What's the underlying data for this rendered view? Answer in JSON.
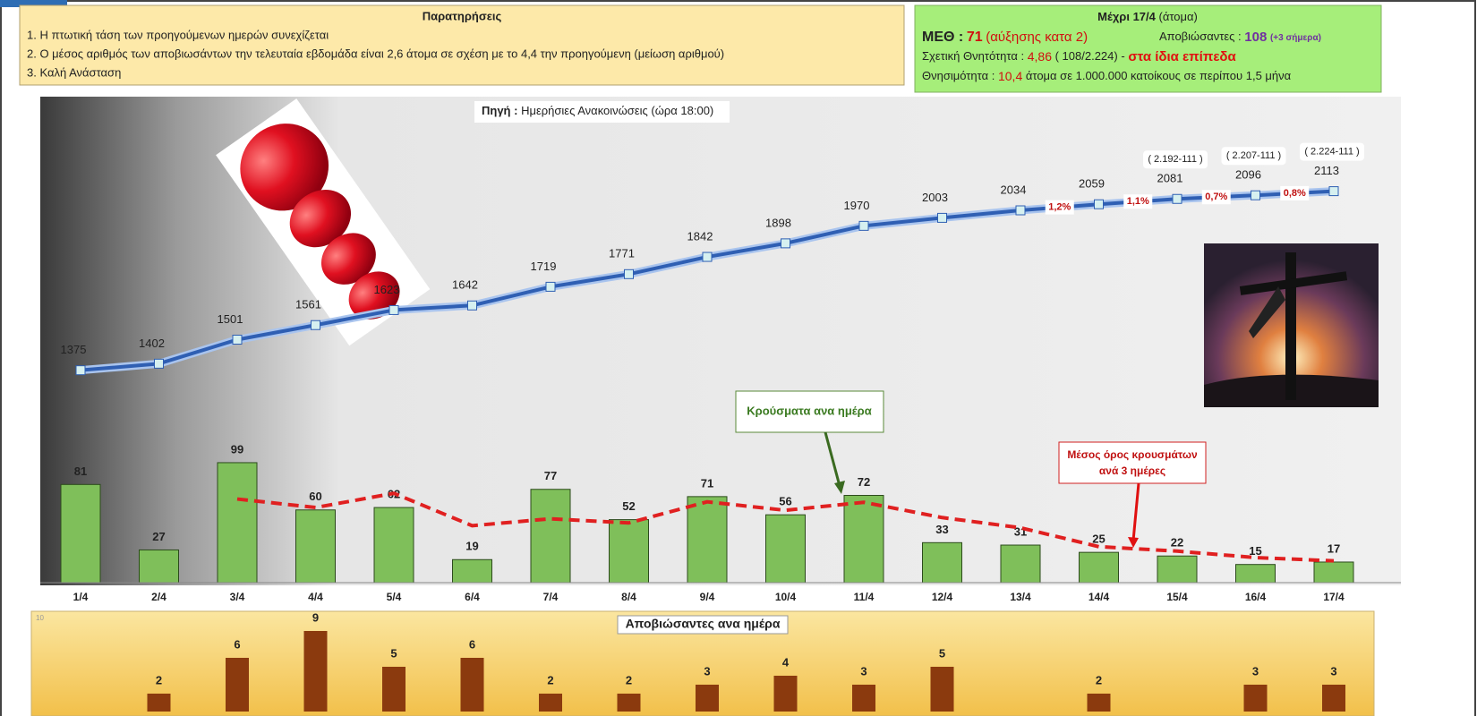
{
  "notes": {
    "title": "Παρατηρήσεις",
    "items": [
      "1. Η πτωτική τάση των προηγούμενων ημερών συνεχίζεται",
      "2. Ο μέσος αριθμός των αποβιωσάντων την τελευταία εβδομάδα είναι 2,6 άτομα σε σχέση με το 4,4 την προηγούμενη (μείωση αριθμού)",
      "3. Καλή Ανάσταση"
    ]
  },
  "summary": {
    "title": "Μέχρι 17/4",
    "title_unit": "(άτομα)",
    "icu_label": "ΜΕΘ :",
    "icu_value": 71,
    "icu_note": "(αύξησης κατα 2)",
    "deaths_label": "Αποβιώσαντες :",
    "deaths_value": 108,
    "deaths_note": "(+3 σήμερα)",
    "cfr_label": "Σχετική Θνητότητα :",
    "cfr_value": "4,86",
    "cfr_note": "( 108/2.224)",
    "cfr_dash": "-",
    "cfr_trend": "στα ίδια επίπεδα",
    "mortality_label": "Θνησιμότητα :",
    "mortality_value": "10,4",
    "mortality_note": "άτομα σε 1.000.000 κατοίκους σε περίπου 1,5 μήνα"
  },
  "chart_data": [
    {
      "type": "line",
      "source_label": "Πηγή :",
      "source": "Ημερήσιες Ανακοινώσεις (ώρα 18:00)",
      "values": [
        1375,
        1402,
        1501,
        1561,
        1623,
        1642,
        1719,
        1771,
        1842,
        1898,
        1970,
        2003,
        2034,
        2059,
        2081,
        2096,
        2113
      ],
      "growth_labels": [
        null,
        null,
        null,
        null,
        null,
        null,
        null,
        null,
        null,
        null,
        null,
        null,
        null,
        "1,2%",
        "1,1%",
        "0,7%",
        "0,8%"
      ],
      "note_labels": [
        null,
        null,
        null,
        null,
        null,
        null,
        null,
        null,
        null,
        null,
        null,
        null,
        null,
        null,
        "( 2.192-111 )",
        "( 2.207-111 )",
        "( 2.224-111 )"
      ],
      "color": "#2f5fb3",
      "ylim": [
        1300,
        2200
      ]
    },
    {
      "type": "bar",
      "categories": [
        "1/4",
        "2/4",
        "3/4",
        "4/4",
        "5/4",
        "6/4",
        "7/4",
        "8/4",
        "9/4",
        "10/4",
        "11/4",
        "12/4",
        "13/4",
        "14/4",
        "15/4",
        "16/4",
        "17/4"
      ],
      "series": [
        {
          "name": "Κρούσματα ανα ημέρα",
          "type": "bar",
          "color": "#7fbf5a",
          "values": [
            81,
            27,
            99,
            60,
            62,
            19,
            77,
            52,
            71,
            56,
            72,
            33,
            31,
            25,
            22,
            15,
            17
          ]
        },
        {
          "name": "Μέσος όρος κρουσμάτων ανά 3 ημέρες",
          "type": "line",
          "color": "#e02020",
          "values": [
            null,
            null,
            69,
            62,
            73.7,
            47,
            52.7,
            49.3,
            66.7,
            59.7,
            66.3,
            53.7,
            45.3,
            29.7,
            26,
            20.7,
            18
          ]
        }
      ],
      "ylim": [
        0,
        100
      ]
    },
    {
      "type": "bar",
      "title": "Αποβιώσαντες ανα ημέρα",
      "values": [
        null,
        2,
        6,
        9,
        5,
        6,
        2,
        2,
        3,
        4,
        3,
        5,
        null,
        2,
        null,
        3,
        3
      ],
      "color": "#8b3a0e",
      "ylim": [
        0,
        10
      ],
      "yticks": [
        10
      ]
    }
  ]
}
